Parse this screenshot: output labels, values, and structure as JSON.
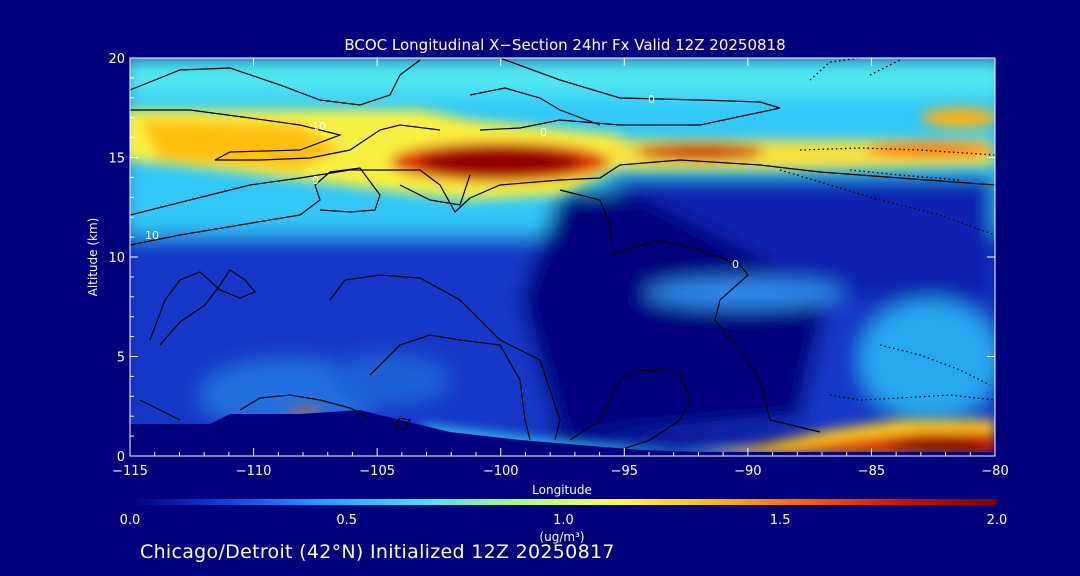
{
  "chart_data": {
    "type": "heatmap",
    "title": "BCOC Longitudinal X−Section 24hr  Fx Valid 12Z 20250818",
    "xlabel": "Longitude",
    "ylabel": "Altitude (km)",
    "xlim": [
      -115,
      -80
    ],
    "ylim": [
      0,
      20
    ],
    "x_ticks": [
      -115,
      -110,
      -105,
      -100,
      -95,
      -90,
      -85,
      -80
    ],
    "x_tick_labels": [
      "−115",
      "−110",
      "−105",
      "−100",
      "−95",
      "−90",
      "−85",
      "−80"
    ],
    "y_ticks": [
      0,
      5,
      10,
      15,
      20
    ],
    "y_tick_labels": [
      "0",
      "5",
      "10",
      "15",
      "20"
    ],
    "colorbar": {
      "min": 0.0,
      "max": 2.0,
      "ticks": [
        "0.0",
        "0.5",
        "1.0",
        "1.5",
        "2.0"
      ],
      "units": "(ug/m³)",
      "colors": [
        "#00007d",
        "#1040e0",
        "#20a0ff",
        "#40e0ff",
        "#a0ff80",
        "#ffff40",
        "#ffc000",
        "#ff6000",
        "#d01000",
        "#800000"
      ]
    },
    "contour_labels": [
      "0",
      "0",
      "0",
      "10",
      "10",
      "0"
    ],
    "regions": [
      {
        "name": "upper-yellow-band",
        "altitude_km": [
          13.5,
          17.5
        ],
        "longitude": [
          -115,
          -96
        ],
        "value_approx": 1.3
      },
      {
        "name": "upper-red-core",
        "altitude_km": [
          14,
          16
        ],
        "longitude": [
          -106,
          -97
        ],
        "value_approx": 2.0
      },
      {
        "name": "upper-red-east",
        "altitude_km": [
          15,
          15.5
        ],
        "longitude": [
          -94,
          -88
        ],
        "value_approx": 1.8
      },
      {
        "name": "surface-red-east",
        "altitude_km": [
          0,
          1
        ],
        "longitude": [
          -88,
          -80
        ],
        "value_approx": 1.9
      },
      {
        "name": "top-cyan-layer",
        "altitude_km": [
          17.5,
          20
        ],
        "longitude": [
          -115,
          -80
        ],
        "value_approx": 0.8
      },
      {
        "name": "low-blue-region",
        "altitude_km": [
          1,
          12
        ],
        "longitude": [
          -110,
          -88
        ],
        "value_approx": 0.2
      }
    ]
  },
  "footer": {
    "text": "Chicago/Detroit (42°N) Initialized 12Z 20250817"
  }
}
